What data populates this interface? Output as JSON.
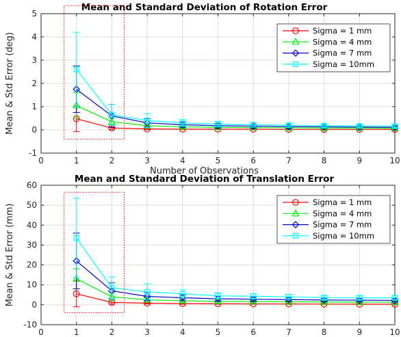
{
  "chart_data": [
    {
      "type": "line",
      "title": "Mean and Standard Deviation of Rotation Error",
      "xlabel": "Number of Observations",
      "ylabel": "Mean & Std Error (deg)",
      "x": [
        1,
        2,
        3,
        4,
        5,
        6,
        7,
        8,
        9,
        10
      ],
      "xlim": [
        0,
        10
      ],
      "ylim": [
        -1,
        5
      ],
      "xticks": [
        "0",
        "1",
        "2",
        "3",
        "4",
        "5",
        "6",
        "7",
        "8",
        "9",
        "10"
      ],
      "yticks": [
        "-1",
        "0",
        "1",
        "2",
        "3",
        "4",
        "5"
      ],
      "grid": true,
      "legend_position": "top-right",
      "highlight_box": {
        "x": [
          0.65,
          2.35
        ],
        "y": [
          -0.4,
          5.35
        ],
        "style": "red dotted"
      },
      "series": [
        {
          "name": "Sigma = 1 mm",
          "color": "#ff0000",
          "marker": "circle",
          "values": [
            0.48,
            0.08,
            0.04,
            0.03,
            0.03,
            0.03,
            0.02,
            0.02,
            0.02,
            0.02
          ],
          "std": [
            0.55,
            0.06,
            0.03,
            0.02,
            0.02,
            0.02,
            0.02,
            0.02,
            0.01,
            0.01
          ]
        },
        {
          "name": "Sigma = 4 mm",
          "color": "#00ee00",
          "marker": "triangle",
          "values": [
            1.05,
            0.35,
            0.18,
            0.13,
            0.11,
            0.1,
            0.09,
            0.08,
            0.08,
            0.07
          ],
          "std": [
            0.55,
            0.15,
            0.08,
            0.06,
            0.05,
            0.04,
            0.04,
            0.03,
            0.03,
            0.03
          ]
        },
        {
          "name": "Sigma = 7 mm",
          "color": "#0000cc",
          "marker": "diamond",
          "values": [
            1.75,
            0.6,
            0.3,
            0.22,
            0.18,
            0.16,
            0.14,
            0.13,
            0.12,
            0.11
          ],
          "std": [
            1.0,
            0.5,
            0.18,
            0.12,
            0.1,
            0.08,
            0.07,
            0.06,
            0.05,
            0.05
          ]
        },
        {
          "name": "Sigma = 10mm",
          "color": "#00ffff",
          "marker": "square",
          "values": [
            2.6,
            0.65,
            0.4,
            0.3,
            0.25,
            0.22,
            0.2,
            0.18,
            0.17,
            0.16
          ],
          "std": [
            1.6,
            0.45,
            0.3,
            0.15,
            0.12,
            0.1,
            0.08,
            0.07,
            0.06,
            0.06
          ]
        }
      ]
    },
    {
      "type": "line",
      "title": "Mean and Standard Deviation of Translation Error",
      "xlabel": "Number of Observations",
      "ylabel": "Mean & Std Error (mm)",
      "x": [
        1,
        2,
        3,
        4,
        5,
        6,
        7,
        8,
        9,
        10
      ],
      "xlim": [
        0,
        10
      ],
      "ylim": [
        -10,
        60
      ],
      "xticks": [
        "0",
        "1",
        "2",
        "3",
        "4",
        "5",
        "6",
        "7",
        "8",
        "9",
        "10"
      ],
      "yticks": [
        "-10",
        "0",
        "10",
        "20",
        "30",
        "40",
        "50",
        "60"
      ],
      "grid": true,
      "legend_position": "top-right",
      "highlight_box": {
        "x": [
          0.65,
          2.35
        ],
        "y": [
          -4,
          56.5
        ],
        "style": "red dotted"
      },
      "series": [
        {
          "name": "Sigma = 1 mm",
          "color": "#ff0000",
          "marker": "circle",
          "values": [
            5.5,
            1.2,
            0.8,
            0.6,
            0.5,
            0.45,
            0.4,
            0.35,
            0.3,
            0.3
          ],
          "std": [
            6.5,
            0.8,
            0.4,
            0.3,
            0.25,
            0.2,
            0.2,
            0.2,
            0.15,
            0.15
          ]
        },
        {
          "name": "Sigma = 4 mm",
          "color": "#00ee00",
          "marker": "triangle",
          "values": [
            13,
            4,
            2.5,
            2,
            1.7,
            1.6,
            1.5,
            1.4,
            1.3,
            1.3
          ],
          "std": [
            5,
            2,
            1,
            0.8,
            0.7,
            0.6,
            0.5,
            0.5,
            0.4,
            0.4
          ]
        },
        {
          "name": "Sigma = 7 mm",
          "color": "#0000cc",
          "marker": "diamond",
          "values": [
            22,
            7,
            4.2,
            3.5,
            3,
            2.8,
            2.6,
            2.4,
            2.3,
            2.2
          ],
          "std": [
            14,
            4,
            2,
            1.5,
            1.2,
            1.0,
            0.9,
            0.8,
            0.7,
            0.7
          ]
        },
        {
          "name": "Sigma = 10mm",
          "color": "#00ffff",
          "marker": "square",
          "values": [
            33.5,
            8.5,
            6.5,
            5.5,
            4.5,
            4.3,
            4,
            3.6,
            3.5,
            3.5
          ],
          "std": [
            20,
            5.5,
            4,
            2,
            1.5,
            1.3,
            1.2,
            1,
            1,
            1
          ]
        }
      ]
    }
  ]
}
